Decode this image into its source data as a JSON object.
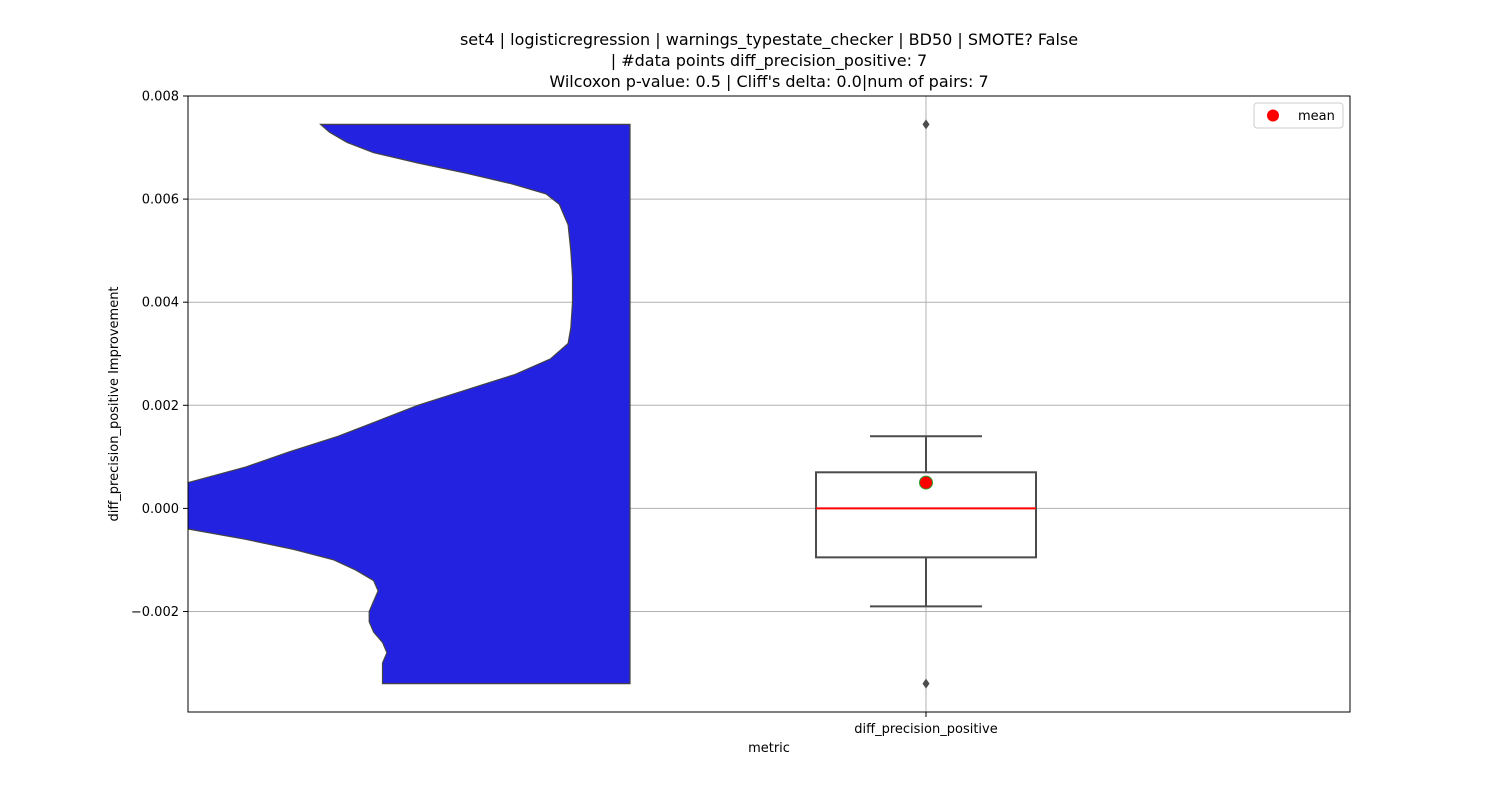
{
  "chart_data": {
    "type": "violin+box",
    "title_lines": [
      "set4 | logisticregression | warnings_typestate_checker | BD50 | SMOTE? False",
      "| #data points diff_precision_positive: 7",
      "Wilcoxon p-value: 0.5 | Cliff's delta: 0.0|num of pairs: 7"
    ],
    "xlabel": "metric",
    "ylabel": "diff_precision_positive Improvement",
    "categories": [
      "diff_precision_positive"
    ],
    "ylim": [
      -0.00395,
      0.008
    ],
    "yticks": [
      -0.002,
      0.0,
      0.002,
      0.004,
      0.006,
      0.008
    ],
    "ytick_labels": [
      "−0.002",
      "0.000",
      "0.002",
      "0.004",
      "0.006",
      "0.008"
    ],
    "grid": true,
    "legend": {
      "position": "top-right",
      "entries": [
        {
          "label": "mean",
          "color": "#ff0000",
          "marker": "circle"
        }
      ]
    },
    "violin": {
      "color": "#2222e0",
      "edge_color": "#444444",
      "density_profile": [
        [
          0.00745,
          0.3
        ],
        [
          0.0073,
          0.32
        ],
        [
          0.0071,
          0.36
        ],
        [
          0.0069,
          0.42
        ],
        [
          0.0067,
          0.52
        ],
        [
          0.0065,
          0.63
        ],
        [
          0.0063,
          0.73
        ],
        [
          0.0061,
          0.81
        ],
        [
          0.0059,
          0.84
        ],
        [
          0.0055,
          0.86
        ],
        [
          0.005,
          0.866
        ],
        [
          0.0045,
          0.87
        ],
        [
          0.004,
          0.87
        ],
        [
          0.0035,
          0.866
        ],
        [
          0.0032,
          0.86
        ],
        [
          0.0029,
          0.82
        ],
        [
          0.0026,
          0.74
        ],
        [
          0.0023,
          0.63
        ],
        [
          0.002,
          0.52
        ],
        [
          0.0017,
          0.43
        ],
        [
          0.0014,
          0.34
        ],
        [
          0.0011,
          0.23
        ],
        [
          0.0008,
          0.13
        ],
        [
          0.0005,
          0.0
        ],
        [
          -0.0004,
          0.0
        ],
        [
          -0.0006,
          0.13
        ],
        [
          -0.0008,
          0.24
        ],
        [
          -0.001,
          0.33
        ],
        [
          -0.0012,
          0.38
        ],
        [
          -0.0014,
          0.42
        ],
        [
          -0.0016,
          0.43
        ],
        [
          -0.0018,
          0.42
        ],
        [
          -0.002,
          0.41
        ],
        [
          -0.0022,
          0.41
        ],
        [
          -0.0024,
          0.42
        ],
        [
          -0.0026,
          0.44
        ],
        [
          -0.0028,
          0.45
        ],
        [
          -0.003,
          0.44
        ],
        [
          -0.0032,
          0.44
        ],
        [
          -0.0034,
          0.44
        ]
      ]
    },
    "box": {
      "q1": -0.00095,
      "median": 0.0,
      "q3": 0.0007,
      "whisker_low": -0.0019,
      "whisker_high": 0.0014,
      "fliers": [
        0.00745,
        -0.0034
      ],
      "mean": 0.0005,
      "median_color": "#ff0000",
      "line_color": "#4c4c4c"
    }
  }
}
